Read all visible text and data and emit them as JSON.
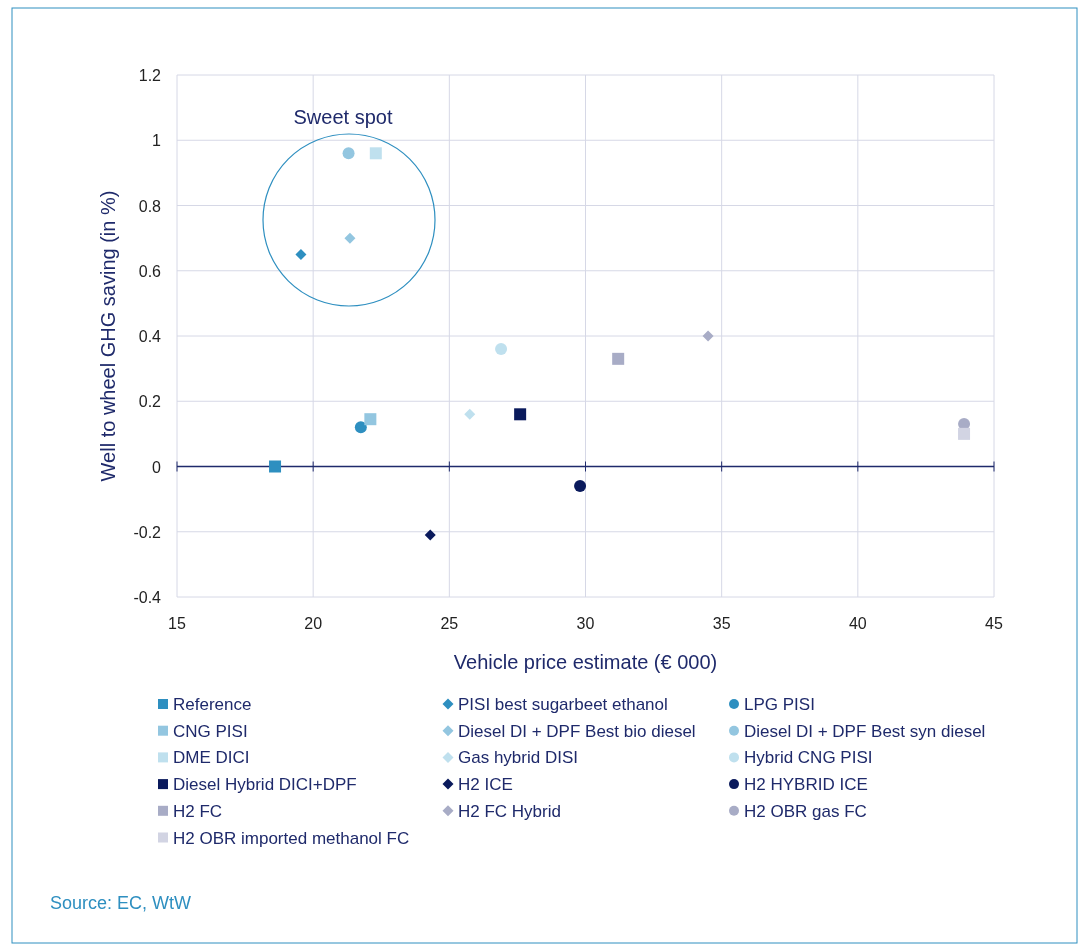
{
  "chart_data": {
    "type": "scatter",
    "xlabel": "Vehicle price estimate (€ 000)",
    "ylabel": "Well to wheel GHG saving (in %)",
    "xlim": [
      15,
      45
    ],
    "xticks": [
      15,
      20,
      25,
      30,
      35,
      40,
      45
    ],
    "ylim": [
      -0.4,
      1.2
    ],
    "yticks": [
      -0.4,
      -0.2,
      0,
      0.2,
      0.4,
      0.6,
      0.8,
      1,
      1.2
    ],
    "grid": true,
    "legend": "bottom",
    "annotations": [
      "Sweet spot",
      "Source: EC, WtW"
    ],
    "ref_lines": [
      {
        "axis": "y",
        "value": 0,
        "color": "#1f2a6b"
      }
    ],
    "series": [
      {
        "name": "Reference",
        "color": "#2e8fc0",
        "marker": "square",
        "x": [
          18.6
        ],
        "values": [
          0
        ]
      },
      {
        "name": "PISI best sugarbeet ethanol",
        "color": "#2e8fc0",
        "marker": "diamond",
        "x": [
          19.55
        ],
        "values": [
          0.65
        ]
      },
      {
        "name": "LPG PISI",
        "color": "#2e8fc0",
        "marker": "circle",
        "x": [
          21.75
        ],
        "values": [
          0.12
        ]
      },
      {
        "name": "CNG PISI",
        "color": "#93c6e0",
        "marker": "square",
        "x": [
          22.1
        ],
        "values": [
          0.145
        ]
      },
      {
        "name": "Diesel DI + DPF Best bio diesel",
        "color": "#93c6e0",
        "marker": "diamond",
        "x": [
          21.35
        ],
        "values": [
          0.7
        ]
      },
      {
        "name": "Diesel DI + DPF Best syn diesel",
        "color": "#93c6e0",
        "marker": "circle",
        "x": [
          21.3
        ],
        "values": [
          0.96
        ]
      },
      {
        "name": "DME DICI",
        "color": "#bfe0ee",
        "marker": "square",
        "x": [
          22.3
        ],
        "values": [
          0.96
        ]
      },
      {
        "name": "Gas hybrid DISI",
        "color": "#bfe0ee",
        "marker": "diamond",
        "x": [
          25.75
        ],
        "values": [
          0.16
        ]
      },
      {
        "name": "Hybrid CNG PISI",
        "color": "#bfe0ee",
        "marker": "circle",
        "x": [
          26.9
        ],
        "values": [
          0.36
        ]
      },
      {
        "name": "Diesel Hybrid DICI+DPF",
        "color": "#0a1a5c",
        "marker": "square",
        "x": [
          27.6
        ],
        "values": [
          0.16
        ]
      },
      {
        "name": "H2 ICE",
        "color": "#0a1a5c",
        "marker": "diamond",
        "x": [
          24.3
        ],
        "values": [
          -0.21
        ]
      },
      {
        "name": "H2 HYBRID ICE",
        "color": "#0a1a5c",
        "marker": "circle",
        "x": [
          29.8
        ],
        "values": [
          -0.06
        ]
      },
      {
        "name": "H2 FC",
        "color": "#a8acc6",
        "marker": "square",
        "x": [
          31.2
        ],
        "values": [
          0.33
        ]
      },
      {
        "name": "H2 FC Hybrid",
        "color": "#a8acc6",
        "marker": "diamond",
        "x": [
          34.5
        ],
        "values": [
          0.4
        ]
      },
      {
        "name": "H2 OBR gas FC",
        "color": "#a8acc6",
        "marker": "circle",
        "x": [
          43.9
        ],
        "values": [
          0.13
        ]
      },
      {
        "name": "H2 OBR imported methanol FC",
        "color": "#d2d4e3",
        "marker": "square",
        "x": [
          43.9
        ],
        "values": [
          0.1
        ]
      }
    ]
  }
}
